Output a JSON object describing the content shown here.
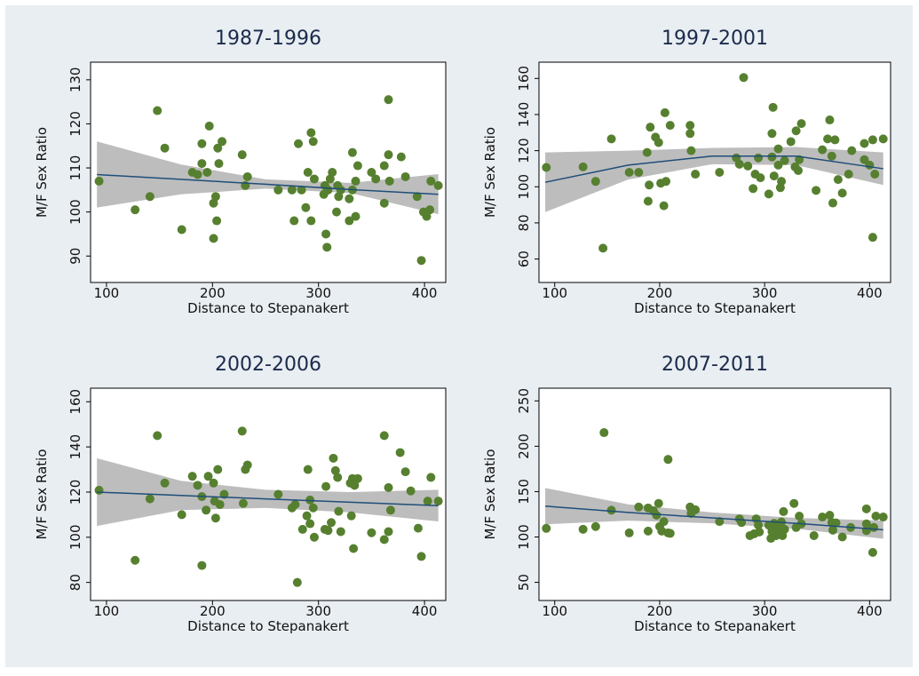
{
  "chart_data": [
    {
      "type": "scatter",
      "title": "1987-1996",
      "xlabel": "Distance to Stepanakert",
      "ylabel": "M/F Sex Ratio",
      "xlim": [
        85,
        420
      ],
      "ylim": [
        84,
        134
      ],
      "xticks": [
        100,
        200,
        300,
        400
      ],
      "yticks": [
        90,
        100,
        110,
        120,
        130
      ],
      "color": "#56802f",
      "fit_color": "#1f4e79",
      "band_color": "#bdbdbd",
      "x": [
        93,
        127,
        141,
        148,
        155,
        171,
        181,
        186,
        190,
        190,
        195,
        197,
        201,
        201,
        203,
        204,
        205,
        209,
        206,
        228,
        231,
        233,
        262,
        275,
        277,
        281,
        284,
        288,
        290,
        293,
        293,
        295,
        296,
        305,
        306,
        307,
        308,
        311,
        309,
        313,
        317,
        318,
        319,
        321,
        329,
        329,
        332,
        332,
        335,
        335,
        337,
        350,
        354,
        362,
        362,
        366,
        366,
        367,
        378,
        382,
        393,
        397,
        399,
        402,
        405,
        406,
        413
      ],
      "values": [
        107,
        100.5,
        103.5,
        123,
        114.5,
        96,
        109,
        108.5,
        115.5,
        111,
        109,
        119.5,
        102,
        94,
        103.5,
        98,
        114.5,
        116,
        111,
        113,
        106,
        108,
        105,
        105,
        98,
        115.5,
        105,
        101,
        109,
        98,
        118,
        116,
        107.5,
        104,
        106,
        95,
        92,
        107.5,
        105,
        109,
        100,
        106,
        103.5,
        105,
        103,
        98,
        105,
        113.5,
        99,
        107,
        110.5,
        109,
        107.5,
        102,
        110.5,
        125.5,
        113,
        107,
        112.5,
        108,
        103.5,
        89,
        100,
        99,
        100.5,
        107,
        106
      ],
      "fit": {
        "x": [
          91,
          170,
          250,
          330,
          413
        ],
        "values": [
          108.5,
          107.4,
          106.3,
          105.1,
          104
        ],
        "lower": [
          101,
          104,
          105.3,
          104.3,
          99.5
        ],
        "upper": [
          116,
          110.8,
          107.4,
          106.6,
          108.6
        ]
      }
    },
    {
      "type": "scatter",
      "title": "1997-2001",
      "xlabel": "Distance to Stepanakert",
      "ylabel": "M/F Sex Ratio",
      "xlim": [
        85,
        420
      ],
      "ylim": [
        47,
        169
      ],
      "xticks": [
        100,
        200,
        300,
        400
      ],
      "yticks": [
        60,
        80,
        100,
        120,
        140,
        160
      ],
      "color": "#56802f",
      "fit_color": "#1f4e79",
      "band_color": "#bdbdbd",
      "x": [
        92,
        127,
        139,
        146,
        154,
        171,
        180,
        188,
        191,
        189,
        190,
        196,
        199,
        201,
        204,
        205,
        206,
        210,
        229,
        229,
        230,
        234,
        257,
        273,
        276,
        280,
        284,
        289,
        291,
        294,
        296,
        304,
        307,
        308,
        307,
        309,
        313,
        313,
        315,
        316,
        319,
        325,
        330,
        329,
        332,
        333,
        335,
        349,
        355,
        360,
        362,
        364,
        365,
        367,
        370,
        374,
        380,
        383,
        395,
        395,
        400,
        403,
        405,
        403,
        413
      ],
      "values": [
        110.7,
        111,
        103,
        66,
        126.5,
        108,
        108,
        119,
        133,
        92,
        101,
        127.5,
        124.5,
        102,
        89.5,
        141,
        103,
        134,
        134,
        129.5,
        120,
        107,
        108,
        116,
        112.5,
        160.5,
        111.5,
        99,
        107,
        116,
        105,
        96,
        129.5,
        144,
        116.5,
        106,
        112,
        121,
        99.5,
        103,
        114.5,
        125,
        131,
        111,
        109,
        115,
        135,
        98,
        120.5,
        126.5,
        137,
        117,
        91,
        126,
        104,
        96.5,
        107,
        120,
        115,
        124,
        112,
        126,
        107,
        72,
        126.5
      ],
      "fit": {
        "x": [
          91,
          170,
          250,
          330,
          413
        ],
        "values": [
          102.5,
          112,
          117,
          117,
          110
        ],
        "lower": [
          86,
          104,
          112.5,
          112,
          101
        ],
        "upper": [
          119,
          120,
          121.5,
          122,
          119
        ]
      }
    },
    {
      "type": "scatter",
      "title": "2002-2006",
      "xlabel": "Distance to Stepanakert",
      "ylabel": "M/F Sex Ratio",
      "xlim": [
        85,
        420
      ],
      "ylim": [
        72,
        166
      ],
      "xticks": [
        100,
        200,
        300,
        400
      ],
      "yticks": [
        80,
        100,
        120,
        140,
        160
      ],
      "color": "#56802f",
      "fit_color": "#1f4e79",
      "band_color": "#bdbdbd",
      "x": [
        93,
        127,
        141,
        148,
        155,
        171,
        181,
        186,
        190,
        190,
        194,
        196,
        201,
        202,
        203,
        205,
        207,
        211,
        228,
        231,
        233,
        229,
        262,
        275,
        278,
        280,
        285,
        289,
        290,
        292,
        292,
        295,
        296,
        306,
        307,
        309,
        312,
        314,
        316,
        318,
        319,
        321,
        330,
        331,
        332,
        334,
        337,
        333,
        350,
        362,
        362,
        366,
        366,
        368,
        377,
        382,
        387,
        394,
        397,
        403,
        406,
        413
      ],
      "values": [
        120.8,
        89.8,
        117,
        145,
        124,
        110,
        127,
        123,
        118,
        87.5,
        112,
        127,
        124,
        116,
        108.5,
        130,
        114.5,
        119,
        147,
        130,
        132,
        115,
        119,
        113,
        114.5,
        80,
        103.5,
        109.5,
        130,
        116.5,
        106,
        113,
        100,
        103.5,
        122.5,
        103,
        106.5,
        135,
        129.5,
        126.5,
        111.5,
        102.5,
        124,
        109.5,
        126,
        123,
        126,
        95,
        102,
        99,
        145,
        102.5,
        122,
        112,
        137.5,
        129,
        120.5,
        104,
        91.5,
        116,
        126.5,
        116
      ],
      "fit": {
        "x": [
          91,
          170,
          250,
          330,
          413
        ],
        "values": [
          120,
          118.5,
          117,
          115.5,
          114
        ],
        "lower": [
          105,
          112,
          113,
          111,
          107
        ],
        "upper": [
          135,
          125,
          121,
          120,
          121
        ]
      }
    },
    {
      "type": "scatter",
      "title": "2007-2011",
      "xlabel": "Distance to Stepanakert",
      "ylabel": "M/F Sex Ratio",
      "xlim": [
        85,
        420
      ],
      "ylim": [
        30,
        264
      ],
      "xticks": [
        100,
        200,
        300,
        400
      ],
      "yticks": [
        50,
        100,
        150,
        200,
        250
      ],
      "color": "#56802f",
      "fit_color": "#1f4e79",
      "band_color": "#bdbdbd",
      "x": [
        92,
        127,
        139,
        147,
        154,
        171,
        180,
        189,
        189,
        194,
        197,
        199,
        200,
        202,
        204,
        208,
        208,
        210,
        229,
        230,
        234,
        257,
        276,
        278,
        286,
        290,
        292,
        294,
        295,
        304,
        306,
        307,
        309,
        311,
        312,
        314,
        316,
        317,
        318,
        319,
        328,
        330,
        333,
        335,
        347,
        355,
        362,
        364,
        365,
        368,
        374,
        382,
        397,
        397,
        397,
        404,
        403,
        406,
        413
      ],
      "values": [
        109.5,
        108.5,
        111.5,
        215,
        129.5,
        104.5,
        133,
        132,
        106.5,
        129,
        124,
        137,
        111.5,
        106.5,
        117,
        185.5,
        104.5,
        104,
        133,
        126,
        130,
        117,
        120,
        116,
        101.5,
        103.5,
        120,
        113,
        105.5,
        113,
        98.5,
        106,
        115,
        101.5,
        110.5,
        104.5,
        116.5,
        101.5,
        128,
        108.5,
        137,
        110.5,
        123,
        114.5,
        101.5,
        122,
        124,
        116,
        107.5,
        115.5,
        100,
        110.5,
        131,
        114.5,
        107,
        110.5,
        83,
        123,
        122
      ],
      "fit": {
        "x": [
          91,
          170,
          250,
          330,
          413
        ],
        "values": [
          134,
          127,
          121,
          115,
          108
        ],
        "lower": [
          114,
          118,
          115,
          109,
          98
        ],
        "upper": [
          154,
          136,
          127,
          121,
          118
        ]
      }
    }
  ]
}
